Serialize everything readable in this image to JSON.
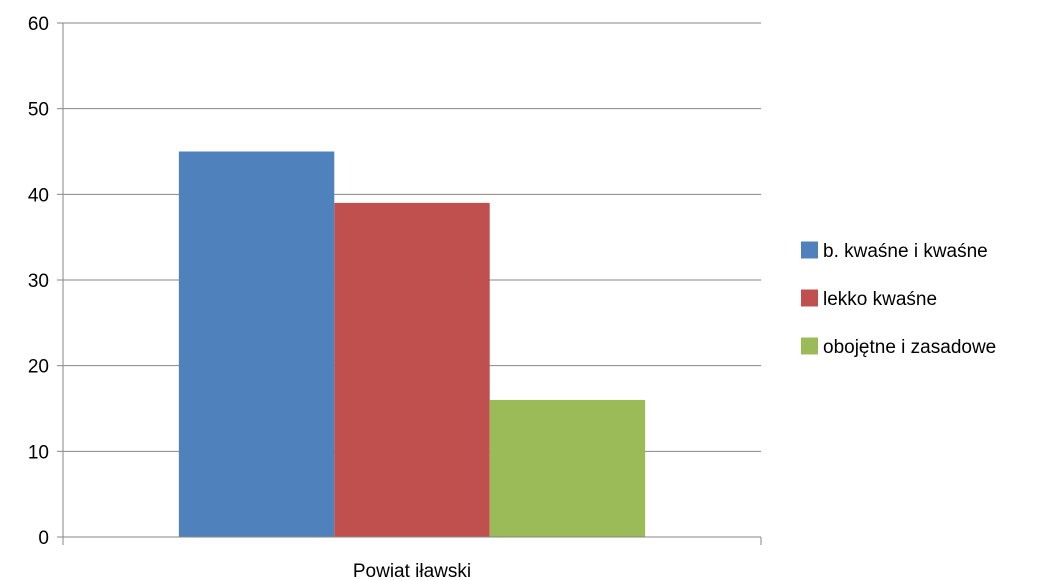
{
  "chart_data": {
    "type": "bar",
    "categories": [
      "Powiat iławski"
    ],
    "series": [
      {
        "name": "b. kwaśne i kwaśne",
        "values": [
          45
        ],
        "color": "#4f81bd"
      },
      {
        "name": "lekko kwaśne",
        "values": [
          39
        ],
        "color": "#c0504d"
      },
      {
        "name": "obojętne i zasadowe",
        "values": [
          16
        ],
        "color": "#9bbb59"
      }
    ],
    "ylim": [
      0,
      60
    ],
    "yticks": [
      "0",
      "10",
      "20",
      "30",
      "40",
      "50",
      "60"
    ],
    "grid": true,
    "legend_position": "right"
  }
}
